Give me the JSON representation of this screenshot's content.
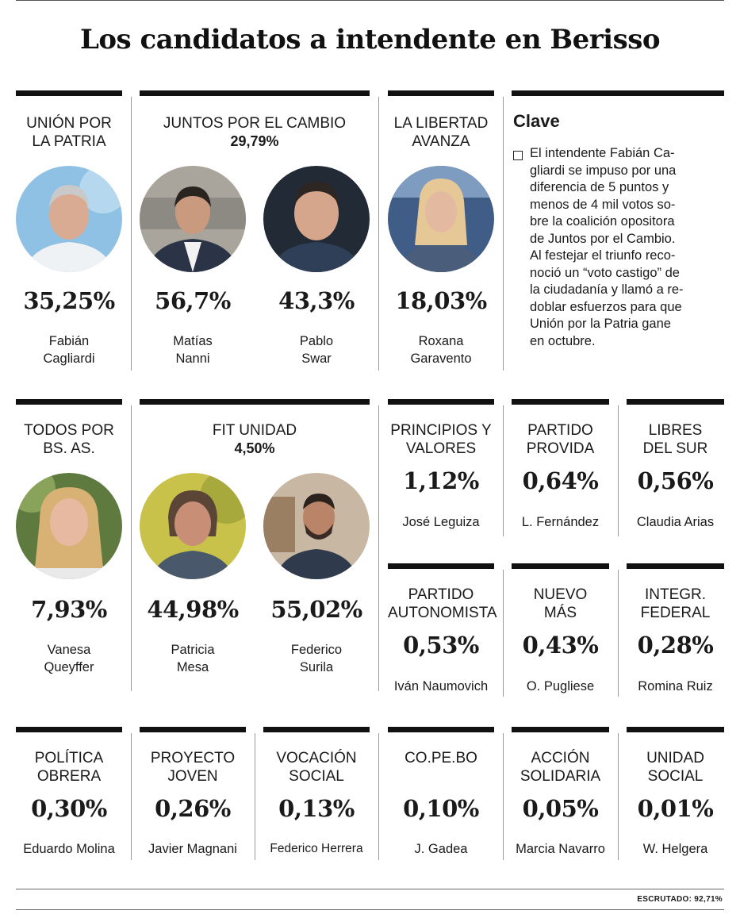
{
  "title": "Los candidatos a intendente en Berisso",
  "row1": {
    "union": {
      "party": [
        "UNIÓN POR",
        "LA PATRIA"
      ],
      "candidate": {
        "pct": "35,25%",
        "name": [
          "Fabián",
          "Cagliardi"
        ]
      }
    },
    "juntos": {
      "party": "JUNTOS POR EL CAMBIO",
      "party_pct": "29,79%",
      "candidates": [
        {
          "pct": "56,7%",
          "name": [
            "Matías",
            "Nanni"
          ]
        },
        {
          "pct": "43,3%",
          "name": [
            "Pablo",
            "Swar"
          ]
        }
      ]
    },
    "libertad": {
      "party": [
        "LA LIBERTAD",
        "AVANZA"
      ],
      "candidate": {
        "pct": "18,03%",
        "name": [
          "Roxana",
          "Garavento"
        ]
      }
    }
  },
  "clave": {
    "title": "Clave",
    "lines": [
      "El intendente Fabián Ca-",
      "gliardi se impuso por una",
      "diferencia de 5 puntos y",
      "menos de 4 mil votos so-",
      "bre la coalición opositora",
      "de Juntos por el Cambio.",
      "Al festejar el triunfo reco-",
      "noció un “voto castigo” de",
      "la ciudadanía y llamó a re-",
      "doblar esfuerzos para que",
      "Unión por la Patria gane",
      "en octubre."
    ]
  },
  "row2": {
    "todos": {
      "party": [
        "TODOS POR",
        "BS. AS."
      ],
      "candidate": {
        "pct": "7,93%",
        "name": [
          "Vanesa",
          "Queyffer"
        ]
      }
    },
    "fit": {
      "party": "FIT UNIDAD",
      "party_pct": "4,50%",
      "candidates": [
        {
          "pct": "44,98%",
          "name": [
            "Patricia",
            "Mesa"
          ]
        },
        {
          "pct": "55,02%",
          "name": [
            "Federico",
            "Surila"
          ]
        }
      ]
    }
  },
  "small_a": [
    {
      "party": [
        "PRINCIPIOS Y",
        "VALORES"
      ],
      "pct": "1,12%",
      "name": "José Leguiza"
    },
    {
      "party": [
        "PARTIDO",
        "PROVIDA"
      ],
      "pct": "0,64%",
      "name": "L. Fernández"
    },
    {
      "party": [
        "LIBRES",
        "DEL SUR"
      ],
      "pct": "0,56%",
      "name": "Claudia Arias"
    }
  ],
  "small_b": [
    {
      "party": [
        "PARTIDO",
        "AUTONOMISTA"
      ],
      "pct": "0,53%",
      "name": "Iván Naumovich"
    },
    {
      "party": [
        "NUEVO",
        "MÁS"
      ],
      "pct": "0,43%",
      "name": "O. Pugliese"
    },
    {
      "party": [
        "INTEGR.",
        "FEDERAL"
      ],
      "pct": "0,28%",
      "name": "Romina Ruiz"
    }
  ],
  "row3": [
    {
      "party": [
        "POLÍTICA",
        "OBRERA"
      ],
      "pct": "0,30%",
      "name": "Eduardo Molina"
    },
    {
      "party": [
        "PROYECTO",
        "JOVEN"
      ],
      "pct": "0,26%",
      "name": "Javier Magnani"
    },
    {
      "party": [
        "VOCACIÓN",
        "SOCIAL"
      ],
      "pct": "0,13%",
      "name": "Federico Herrera"
    },
    {
      "party": [
        "CO.PE.BO",
        ""
      ],
      "pct": "0,10%",
      "name": "J. Gadea"
    },
    {
      "party": [
        "ACCIÓN",
        "SOLIDARIA"
      ],
      "pct": "0,05%",
      "name": "Marcia Navarro"
    },
    {
      "party": [
        "UNIDAD",
        "SOCIAL"
      ],
      "pct": "0,01%",
      "name": "W. Helgera"
    }
  ],
  "footer": {
    "escrutado": "ESCRUTADO: 92,71%"
  }
}
